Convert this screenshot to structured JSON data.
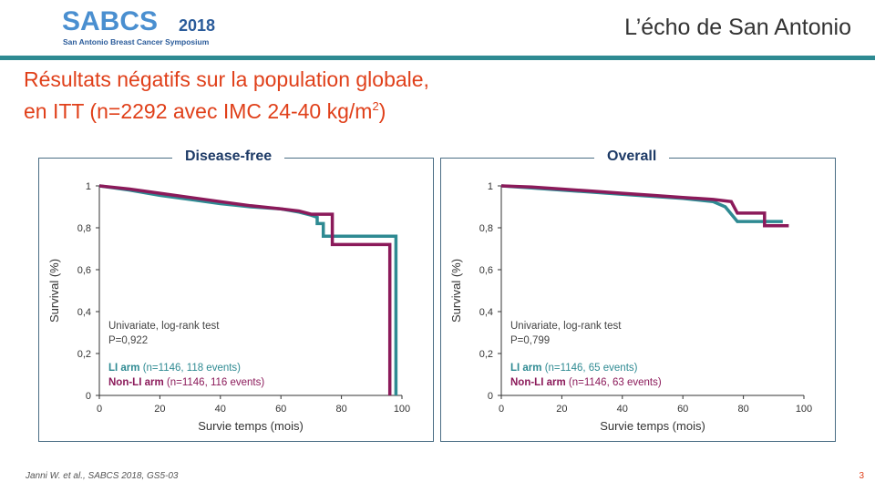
{
  "header": {
    "logo_main": "SABCS",
    "logo_year": "2018",
    "logo_subtitle": "San Antonio Breast Cancer Symposium",
    "brand": "L’écho de San Antonio",
    "accent_color": "#2e8a92"
  },
  "title": {
    "line1": "Résultats négatifs sur la population globale,",
    "line2_prefix": "en ITT (n=2292 avec IMC 24-40 kg/m",
    "line2_sup": "2",
    "line2_suffix": ")",
    "color": "#e0401a"
  },
  "footer": {
    "reference": "Janni W. et al., SABCS 2018, GS5-03",
    "page": "3"
  },
  "chart_data": [
    {
      "type": "line",
      "title": "Disease-free",
      "xlabel": "Survie temps (mois)",
      "ylabel": "Survival (%)",
      "xlim": [
        0,
        100
      ],
      "ylim": [
        0,
        1
      ],
      "x_ticks": [
        "0",
        "20",
        "40",
        "60",
        "80",
        "100"
      ],
      "y_ticks": [
        "0",
        "0,2",
        "0,4",
        "0,6",
        "0,8",
        "1"
      ],
      "annotation_line1": "Univariate,  log-rank test",
      "annotation_line2": "P=0,922",
      "legend": [
        {
          "bold": "LI arm",
          "detail": " (n=1146,  118 events)",
          "color": "#2e8a92"
        },
        {
          "bold": "Non-LI arm",
          "detail": " (n=1146,  116 events)",
          "color": "#8b1a5a"
        }
      ],
      "series": [
        {
          "name": "LI arm",
          "color": "#2e8a92",
          "x": [
            0,
            10,
            20,
            30,
            40,
            50,
            60,
            66,
            70,
            72,
            72,
            74,
            74,
            98,
            98
          ],
          "y": [
            1.0,
            0.98,
            0.955,
            0.935,
            0.915,
            0.9,
            0.89,
            0.875,
            0.86,
            0.85,
            0.82,
            0.82,
            0.76,
            0.76,
            0.0
          ]
        },
        {
          "name": "Non-LI arm",
          "color": "#8b1a5a",
          "x": [
            0,
            10,
            20,
            30,
            40,
            50,
            60,
            66,
            70,
            77,
            77,
            96,
            96
          ],
          "y": [
            1.0,
            0.985,
            0.965,
            0.945,
            0.925,
            0.905,
            0.89,
            0.88,
            0.865,
            0.865,
            0.72,
            0.72,
            0.0
          ]
        }
      ]
    },
    {
      "type": "line",
      "title": "Overall",
      "xlabel": "Survie temps (mois)",
      "ylabel": "Survival (%)",
      "xlim": [
        0,
        100
      ],
      "ylim": [
        0,
        1
      ],
      "x_ticks": [
        "0",
        "20",
        "40",
        "60",
        "80",
        "100"
      ],
      "y_ticks": [
        "0",
        "0,2",
        "0,4",
        "0,6",
        "0,8",
        "1"
      ],
      "annotation_line1": "Univariate,  log-rank test",
      "annotation_line2": "P=0,799",
      "legend": [
        {
          "bold": "LI arm",
          "detail": " (n=1146,  65 events)",
          "color": "#2e8a92"
        },
        {
          "bold": "Non-LI arm",
          "detail": " (n=1146,  63 events)",
          "color": "#8b1a5a"
        }
      ],
      "series": [
        {
          "name": "LI arm",
          "color": "#2e8a92",
          "x": [
            0,
            10,
            20,
            30,
            40,
            50,
            60,
            70,
            74,
            78,
            78,
            93
          ],
          "y": [
            1.0,
            0.99,
            0.98,
            0.97,
            0.96,
            0.95,
            0.94,
            0.925,
            0.9,
            0.83,
            0.83,
            0.83
          ]
        },
        {
          "name": "Non-LI arm",
          "color": "#8b1a5a",
          "x": [
            0,
            10,
            20,
            30,
            40,
            50,
            60,
            70,
            76,
            78,
            78,
            87,
            87,
            95
          ],
          "y": [
            1.0,
            0.995,
            0.985,
            0.975,
            0.965,
            0.955,
            0.945,
            0.935,
            0.925,
            0.87,
            0.87,
            0.87,
            0.81,
            0.81
          ]
        }
      ]
    }
  ]
}
